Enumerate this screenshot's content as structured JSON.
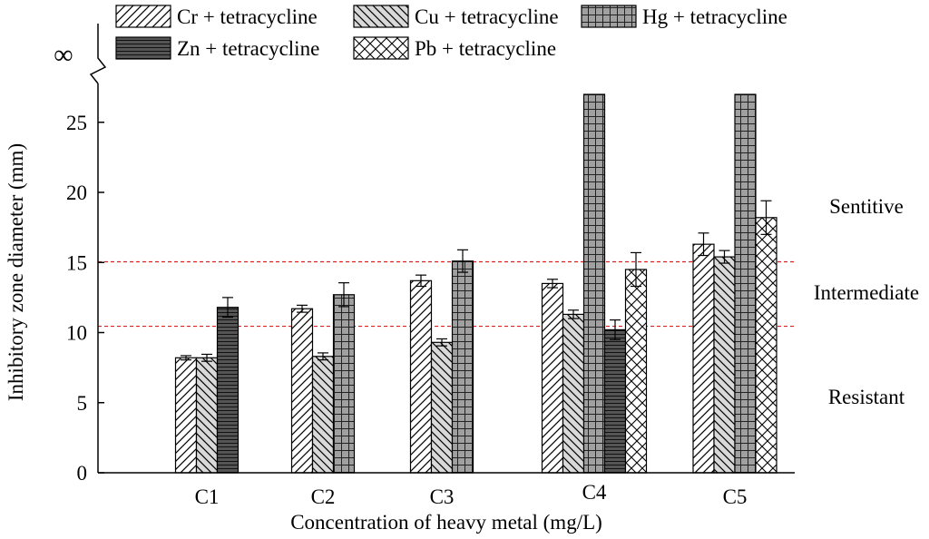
{
  "chart_data": {
    "type": "bar",
    "title": "",
    "xlabel": "Concentration of heavy metal (mg/L)",
    "ylabel": "Inhibitory zone diameter (mm)",
    "ylim": [
      0,
      27
    ],
    "yticks": [
      0,
      5,
      10,
      15,
      20,
      25
    ],
    "y_break_label": "∞",
    "grid": false,
    "legend_position": "top",
    "categories": [
      "C1",
      "C2",
      "C3",
      "C4",
      "C5"
    ],
    "series": [
      {
        "name": "Cr + tetracycline",
        "pattern": "diag-forward",
        "fill": "#ffffff",
        "values": [
          8.2,
          11.7,
          13.7,
          13.5,
          16.3
        ],
        "errors": [
          0.15,
          0.25,
          0.4,
          0.3,
          0.8
        ]
      },
      {
        "name": "Cu + tetracycline",
        "pattern": "diag-back",
        "fill": "#d9d9d9",
        "values": [
          8.2,
          8.3,
          9.3,
          11.3,
          15.4
        ],
        "errors": [
          0.25,
          0.25,
          0.25,
          0.3,
          0.45
        ]
      },
      {
        "name": "Hg + tetracycline",
        "pattern": "grid",
        "fill": "#999999",
        "values": [
          null,
          12.7,
          15.1,
          "infinity",
          "infinity"
        ],
        "errors": [
          null,
          0.85,
          0.8,
          null,
          null
        ]
      },
      {
        "name": "Zn + tetracycline",
        "pattern": "horizontal",
        "fill": "#555555",
        "values": [
          11.8,
          null,
          null,
          10.2,
          null
        ],
        "errors": [
          0.7,
          null,
          null,
          0.7,
          null
        ]
      },
      {
        "name": "Pb + tetracycline",
        "pattern": "crosshatch",
        "fill": "#ffffff",
        "values": [
          null,
          null,
          null,
          14.5,
          18.2
        ],
        "errors": [
          null,
          null,
          null,
          1.2,
          1.2
        ]
      }
    ],
    "thresholds": [
      {
        "value": 15.05,
        "color": "#e02020"
      },
      {
        "value": 10.45,
        "color": "#e02020"
      }
    ],
    "zone_labels": [
      "Sentitive",
      "Intermediate",
      "Resistant"
    ]
  }
}
